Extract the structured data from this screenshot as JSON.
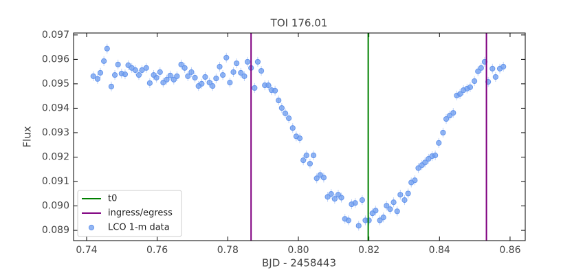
{
  "chart_data": {
    "type": "scatter",
    "title": "TOI 176.01",
    "x_label": "BJD - 2458443",
    "y_label": "Flux",
    "xlim": [
      0.7363,
      0.8643
    ],
    "ylim": [
      0.08858,
      0.09708
    ],
    "xticks": [
      0.74,
      0.76,
      0.78,
      {
        "value": 0.8,
        "label": "0.80"
      },
      0.82,
      0.84,
      0.86
    ],
    "yticks": [
      0.089,
      {
        "value": 0.09,
        "label": "0.090"
      },
      0.091,
      0.092,
      0.093,
      0.094,
      0.095,
      0.096,
      0.097
    ],
    "legend": "lower left",
    "vlines": [
      {
        "name": "t0",
        "color": "green",
        "x": [
          0.8198
        ]
      },
      {
        "name": "ingress/egress",
        "color": "purple",
        "x": [
          0.7866,
          0.8533
        ]
      }
    ],
    "series": [
      {
        "name": "LCO 1-m data",
        "color": "#6495ed",
        "yerr": 0.0002,
        "x": [
          0.7419,
          0.7431,
          0.7439,
          0.7449,
          0.7458,
          0.747,
          0.748,
          0.7489,
          0.7499,
          0.7509,
          0.7518,
          0.7528,
          0.7538,
          0.7548,
          0.7557,
          0.7569,
          0.7579,
          0.759,
          0.7598,
          0.7608,
          0.7617,
          0.7627,
          0.7637,
          0.7647,
          0.7656,
          0.7668,
          0.7678,
          0.7687,
          0.7697,
          0.7707,
          0.7717,
          0.7726,
          0.7736,
          0.7748,
          0.7757,
          0.7767,
          0.7777,
          0.7786,
          0.7796,
          0.7806,
          0.7816,
          0.7825,
          0.7837,
          0.7847,
          0.7856,
          0.7866,
          0.7876,
          0.7885,
          0.7895,
          0.7905,
          0.7915,
          0.7924,
          0.7934,
          0.7944,
          0.7953,
          0.7963,
          0.7973,
          0.7984,
          0.7994,
          0.8004,
          0.8014,
          0.8023,
          0.8033,
          0.8043,
          0.8052,
          0.8062,
          0.8072,
          0.8083,
          0.8093,
          0.8103,
          0.8113,
          0.8122,
          0.8132,
          0.8142,
          0.8151,
          0.8161,
          0.8171,
          0.8181,
          0.819,
          0.82,
          0.821,
          0.8219,
          0.8231,
          0.8241,
          0.825,
          0.826,
          0.827,
          0.828,
          0.8289,
          0.8301,
          0.8311,
          0.832,
          0.833,
          0.834,
          0.835,
          0.8359,
          0.8369,
          0.8379,
          0.8388,
          0.8398,
          0.841,
          0.8419,
          0.8429,
          0.8439,
          0.8449,
          0.8458,
          0.8468,
          0.8478,
          0.8487,
          0.8499,
          0.8509,
          0.8518,
          0.8528,
          0.8538,
          0.855,
          0.8559,
          0.8571,
          0.8581
        ],
        "values": [
          0.09531,
          0.0952,
          0.09545,
          0.09593,
          0.09644,
          0.09489,
          0.09536,
          0.09579,
          0.09542,
          0.09539,
          0.09576,
          0.09565,
          0.09556,
          0.09536,
          0.09556,
          0.09565,
          0.09503,
          0.09536,
          0.09525,
          0.09548,
          0.09505,
          0.09517,
          0.09534,
          0.09517,
          0.09531,
          0.09579,
          0.09565,
          0.09531,
          0.09548,
          0.09525,
          0.09491,
          0.095,
          0.09528,
          0.09505,
          0.09491,
          0.09522,
          0.0957,
          0.09536,
          0.09607,
          0.09505,
          0.09548,
          0.09584,
          0.09545,
          0.09531,
          0.0959,
          0.09565,
          0.09483,
          0.0959,
          0.09553,
          0.09494,
          0.09494,
          0.09474,
          0.09472,
          0.09432,
          0.09401,
          0.09379,
          0.09359,
          0.09319,
          0.09285,
          0.09277,
          0.09187,
          0.09207,
          0.09173,
          0.09207,
          0.09113,
          0.09127,
          0.09116,
          0.09037,
          0.09049,
          0.09029,
          0.09046,
          0.09034,
          0.08947,
          0.08941,
          0.09007,
          0.09012,
          0.08919,
          0.09024,
          0.08941,
          0.08941,
          0.0897,
          0.08981,
          0.08941,
          0.08953,
          0.09001,
          0.08987,
          0.09015,
          0.08978,
          0.09046,
          0.09024,
          0.09051,
          0.09096,
          0.09105,
          0.09155,
          0.09167,
          0.09178,
          0.09193,
          0.09204,
          0.09207,
          0.09258,
          0.093,
          0.09356,
          0.0937,
          0.09381,
          0.09452,
          0.09458,
          0.09474,
          0.0948,
          0.09486,
          0.09511,
          0.09551,
          0.09565,
          0.0959,
          0.09508,
          0.09562,
          0.09528,
          0.09562,
          0.0957
        ]
      }
    ]
  }
}
